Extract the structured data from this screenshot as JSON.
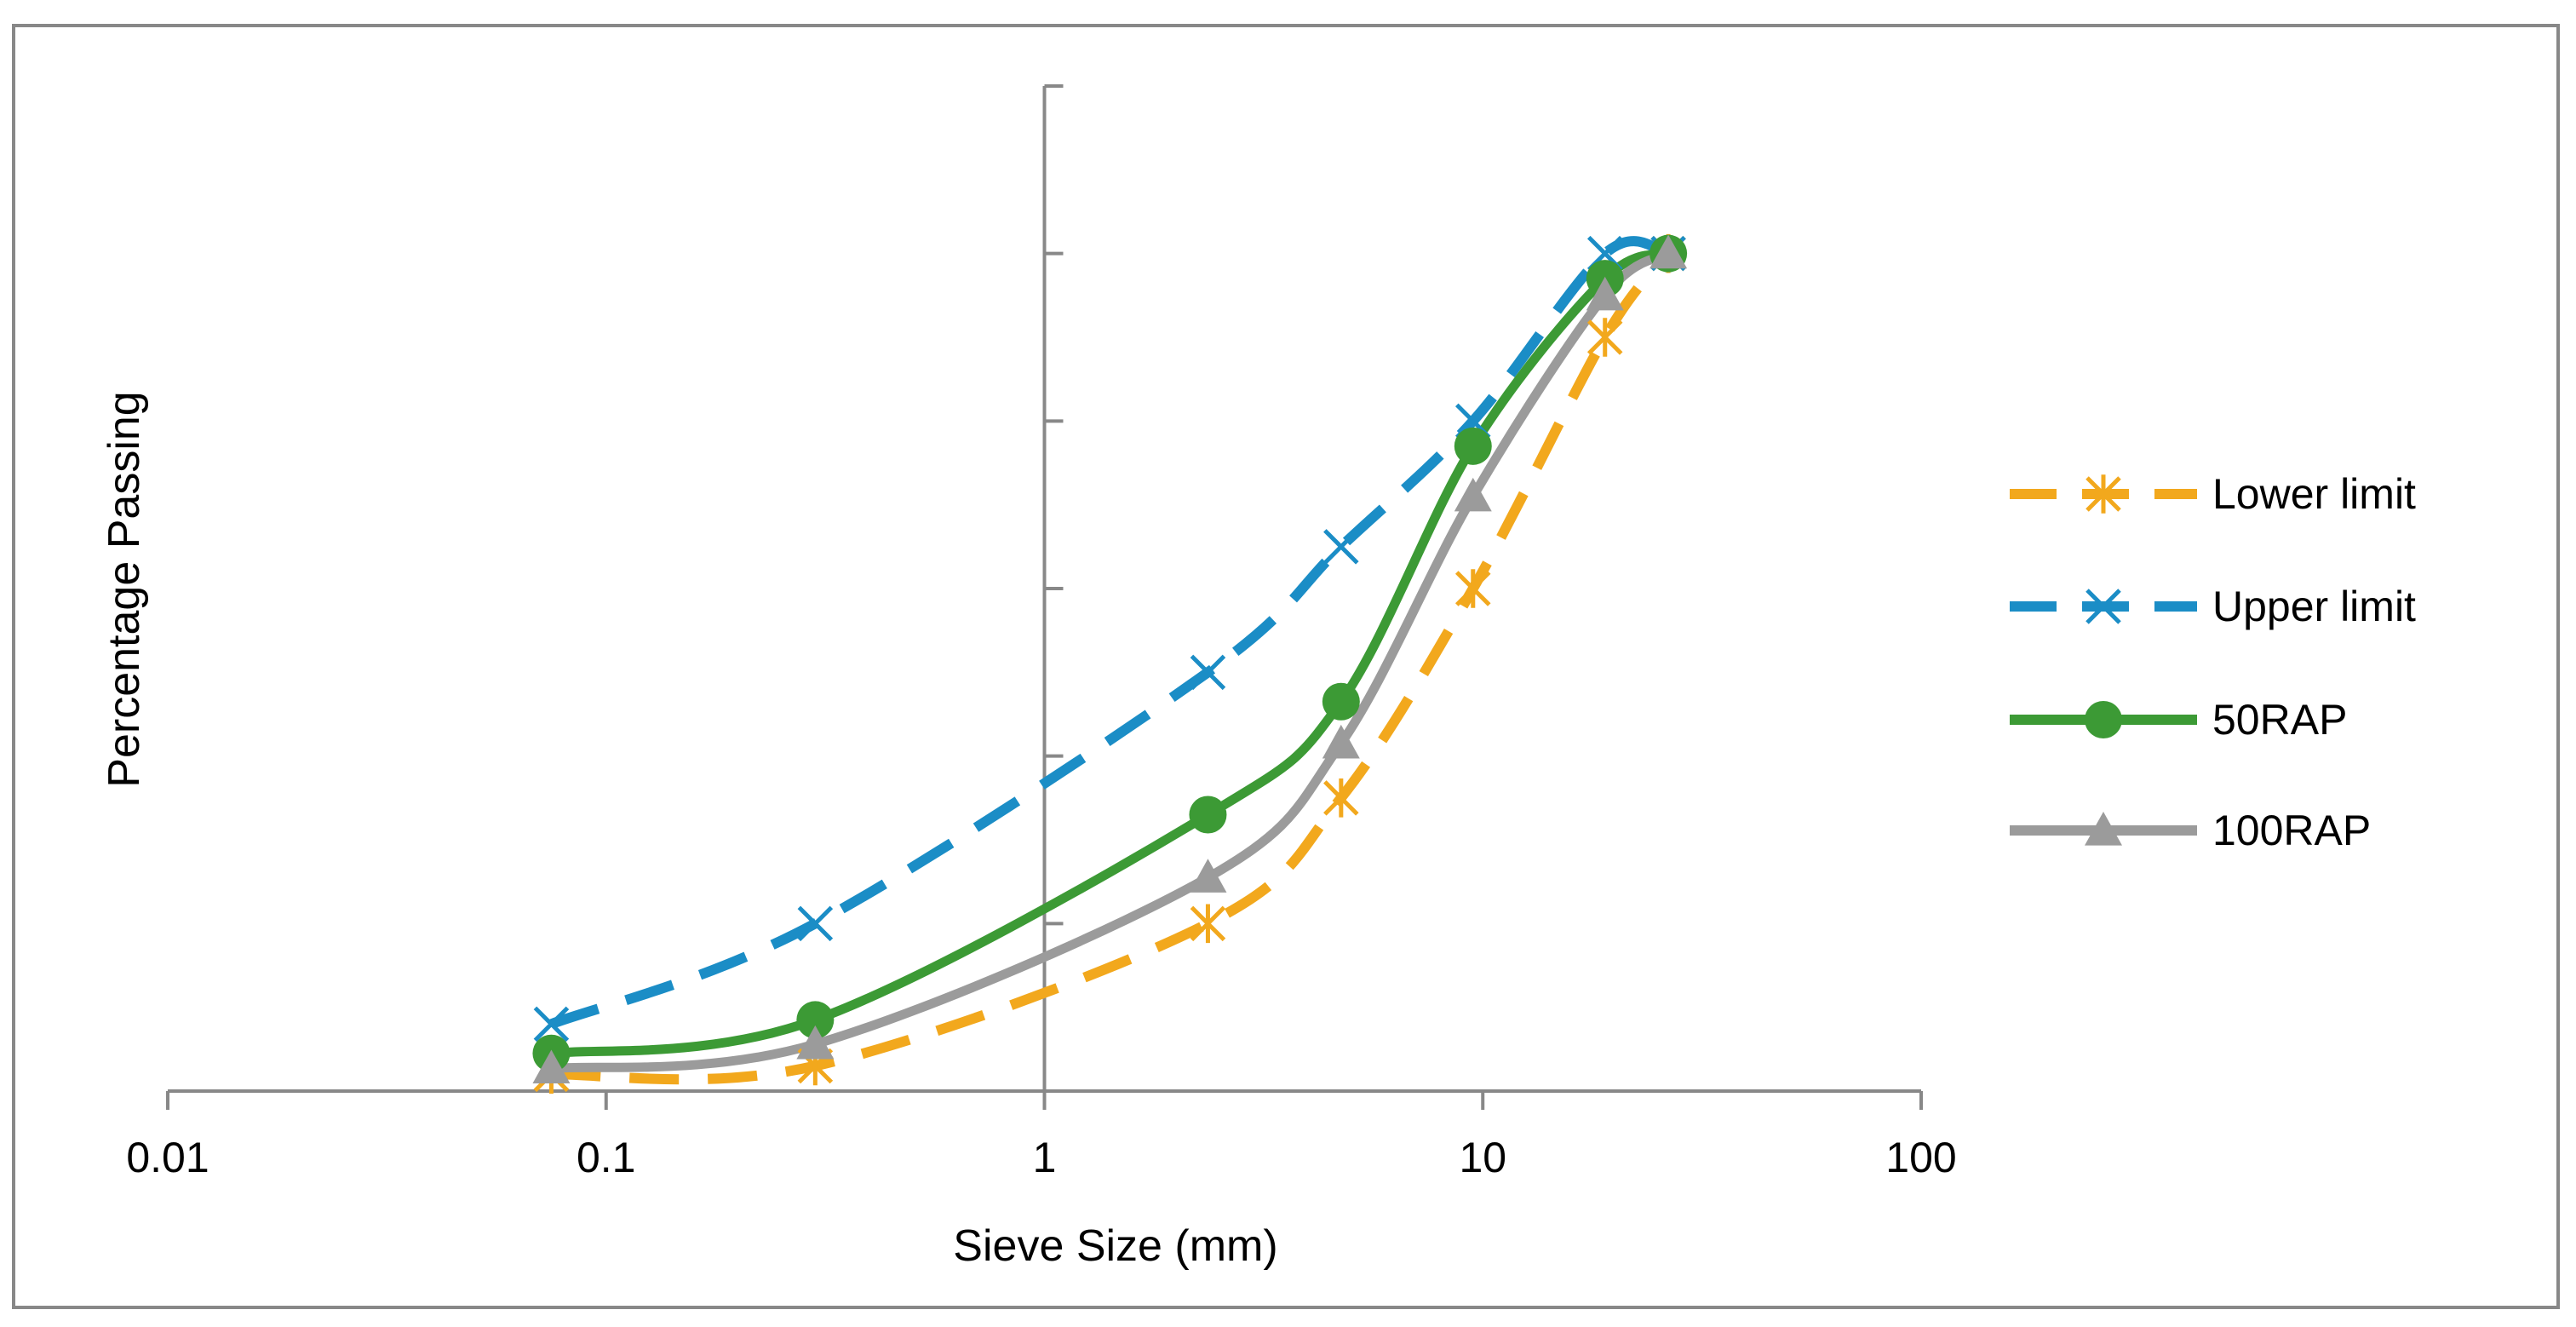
{
  "chart_data": {
    "type": "line",
    "xscale": "log",
    "xlabel": "Sieve Size (mm)",
    "ylabel": "Percentage Passing",
    "xlim": [
      0.01,
      100
    ],
    "ylim": [
      0,
      120
    ],
    "x_tick_labels": [
      "0.01",
      "0.1",
      "1",
      "10",
      "100"
    ],
    "y_tick_labels_visible": false,
    "legend_position": "right",
    "series": [
      {
        "name": "Lower limit",
        "style": "dashed",
        "color": "#F2A81D",
        "marker": "asterisk",
        "x": [
          0.075,
          0.3,
          2.36,
          4.75,
          9.5,
          19,
          26.5
        ],
        "y": [
          2,
          3,
          20,
          35,
          60,
          90,
          100
        ]
      },
      {
        "name": "Upper limit",
        "style": "dashed",
        "color": "#1B8DC6",
        "marker": "x",
        "x": [
          0.075,
          0.3,
          2.36,
          4.75,
          9.5,
          19,
          26.5
        ],
        "y": [
          8,
          20,
          50,
          65,
          80,
          100,
          100
        ]
      },
      {
        "name": "50RAP",
        "style": "solid",
        "color": "#3C9A35",
        "marker": "circle",
        "x": [
          0.075,
          0.3,
          2.36,
          4.75,
          9.5,
          19,
          26.5
        ],
        "y": [
          4.5,
          8.5,
          33,
          46.5,
          77,
          97,
          100
        ]
      },
      {
        "name": "100RAP",
        "style": "solid",
        "color": "#9B9B9B",
        "marker": "triangle",
        "x": [
          0.075,
          0.3,
          2.36,
          4.75,
          9.5,
          19,
          26.5
        ],
        "y": [
          2.7,
          5.6,
          25.5,
          41.5,
          71,
          95,
          100
        ]
      }
    ]
  }
}
